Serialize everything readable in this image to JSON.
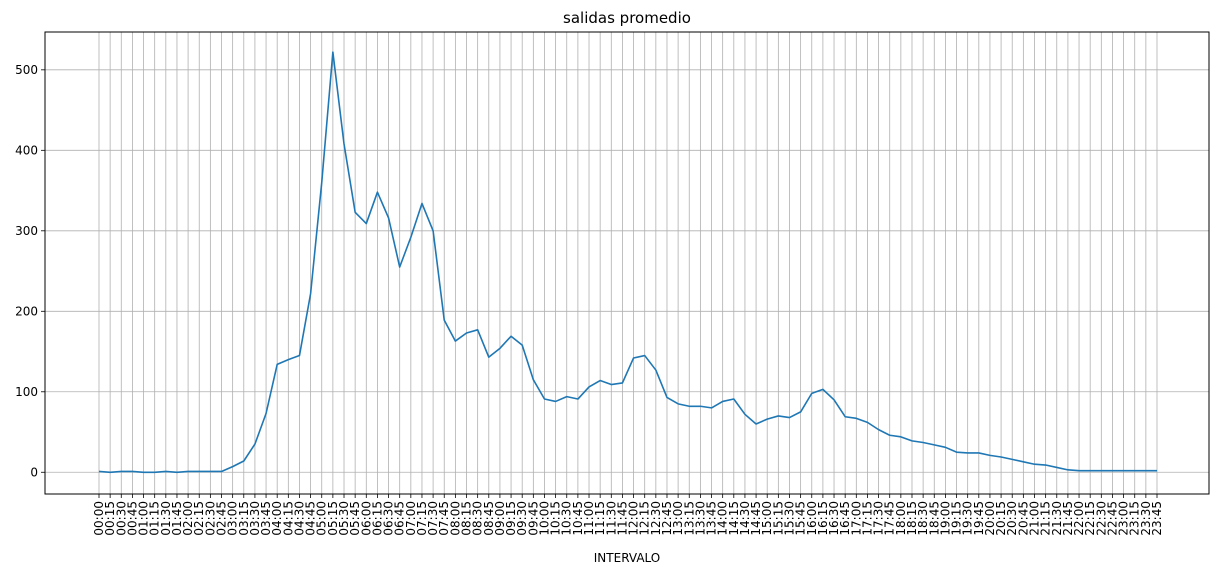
{
  "chart_data": {
    "type": "line",
    "title": "salidas promedio",
    "xlabel": "INTERVALO",
    "ylabel": "",
    "ylim": [
      -27,
      547
    ],
    "yticks": [
      0,
      100,
      200,
      300,
      400,
      500
    ],
    "grid": true,
    "line_color": "#1f77b4",
    "categories": [
      "00:00",
      "00:15",
      "00:30",
      "00:45",
      "01:00",
      "01:15",
      "01:30",
      "01:45",
      "02:00",
      "02:15",
      "02:30",
      "02:45",
      "03:00",
      "03:15",
      "03:30",
      "03:45",
      "04:00",
      "04:15",
      "04:30",
      "04:45",
      "05:00",
      "05:15",
      "05:30",
      "05:45",
      "06:00",
      "06:15",
      "06:30",
      "06:45",
      "07:00",
      "07:15",
      "07:30",
      "07:45",
      "08:00",
      "08:15",
      "08:30",
      "08:45",
      "09:00",
      "09:15",
      "09:30",
      "09:45",
      "10:00",
      "10:15",
      "10:30",
      "10:45",
      "11:00",
      "11:15",
      "11:30",
      "11:45",
      "12:00",
      "12:15",
      "12:30",
      "12:45",
      "13:00",
      "13:15",
      "13:30",
      "13:45",
      "14:00",
      "14:15",
      "14:30",
      "14:45",
      "15:00",
      "15:15",
      "15:30",
      "15:45",
      "16:00",
      "16:15",
      "16:30",
      "16:45",
      "17:00",
      "17:15",
      "17:30",
      "17:45",
      "18:00",
      "18:15",
      "18:30",
      "18:45",
      "19:00",
      "19:15",
      "19:30",
      "19:45",
      "20:00",
      "20:15",
      "20:30",
      "20:45",
      "21:00",
      "21:15",
      "21:30",
      "21:45",
      "22:00",
      "22:15",
      "22:30",
      "22:45",
      "23:00",
      "23:15",
      "23:30",
      "23:45"
    ],
    "tick_labels": [
      "00:00",
      "00:15",
      "00:30",
      "00:45",
      "01:00",
      "01:15",
      "01:30",
      "01:45",
      "02:00",
      "02:15",
      "02:30",
      "02:45",
      "03:00",
      "03:15",
      "03:30",
      "03:45",
      "04:00",
      "04:15",
      "04:30",
      "04:45",
      "05:00",
      "05:15",
      "05:30",
      "05:45",
      "06:00",
      "06:15",
      "06:30",
      "06:45",
      "07:00",
      "07:15",
      "07:30",
      "07:45",
      "08:00",
      "08:15",
      "08:30",
      "08:45",
      "09:00",
      "09:15",
      "09:30",
      "09:45",
      "10:00",
      "10:15",
      "10:30",
      "10:45",
      "11:00",
      "11:15",
      "11:30",
      "11:45",
      "12:00",
      "12:15",
      "12:30",
      "12:45",
      "13:00",
      "13:15",
      "13:30",
      "13:45",
      "14:00",
      "14:15",
      "14:30",
      "14:45",
      "15:00",
      "15:15",
      "15:30",
      "15:45",
      "16:00",
      "16:15",
      "16:30",
      "16:45",
      "17:00",
      "17:15",
      "17:30",
      "17:45",
      "18:00",
      "18:15",
      "18:30",
      "18:45",
      "19:00",
      "19:15",
      "19:30",
      "19:45",
      "20:00",
      "20:15",
      "20:30",
      "20:45",
      "21:00",
      "21:15",
      "21:30",
      "21:45",
      "22:00",
      "22:15",
      "22:30",
      "22:45",
      "23:00",
      "23:15",
      "23:30",
      "23:45"
    ],
    "series": [
      {
        "values": [
          1,
          0,
          1,
          1,
          0,
          0,
          1,
          0,
          1,
          1,
          1,
          1,
          7,
          14,
          35,
          73,
          134,
          140,
          145,
          222,
          360,
          522,
          408,
          323,
          309,
          348,
          316,
          255,
          292,
          334,
          300,
          189,
          163,
          173,
          177,
          143,
          154,
          169,
          158,
          115,
          91,
          88,
          94,
          91,
          106,
          114,
          109,
          111,
          142,
          145,
          127,
          93,
          85,
          82,
          82,
          80,
          88,
          91,
          72,
          60,
          66,
          70,
          68,
          75,
          98,
          103,
          90,
          69,
          67,
          62,
          53,
          46,
          44,
          39,
          37,
          34,
          31,
          25,
          24,
          24,
          21,
          19,
          16,
          13,
          10,
          9,
          6,
          3,
          2,
          2,
          2,
          2,
          2,
          2,
          2,
          2
        ]
      }
    ]
  }
}
